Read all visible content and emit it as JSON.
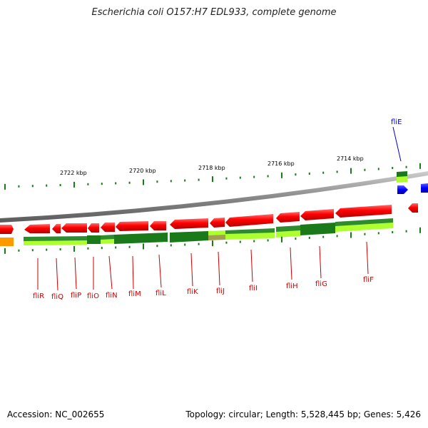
{
  "title": "Escherichia coli O157:H7 EDL933, complete genome",
  "footer": {
    "accession": "Accession: NC_002655",
    "summary": "Topology: circular; Length: 5,528,445 bp; Genes: 5,426"
  },
  "colors": {
    "forward_cds": "#ff0000",
    "reverse_cds": "#ff0000",
    "highlight_gene": "#0000ff",
    "gc_dark": "#1a7a1a",
    "gc_light": "#adff2f",
    "orange": "#ff9900",
    "backbone": "#888888",
    "ticks": "#1a7a1a"
  },
  "scale_labels": [
    "2722 kbp",
    "2720 kbp",
    "2718 kbp",
    "2716 kbp",
    "2714 kbp"
  ],
  "highlight_gene": "fliE",
  "genes": [
    "fliR",
    "fliQ",
    "fliP",
    "fliO",
    "fliN",
    "fliM",
    "fliL",
    "fliK",
    "fliJ",
    "fliI",
    "fliH",
    "fliG",
    "fliF"
  ]
}
